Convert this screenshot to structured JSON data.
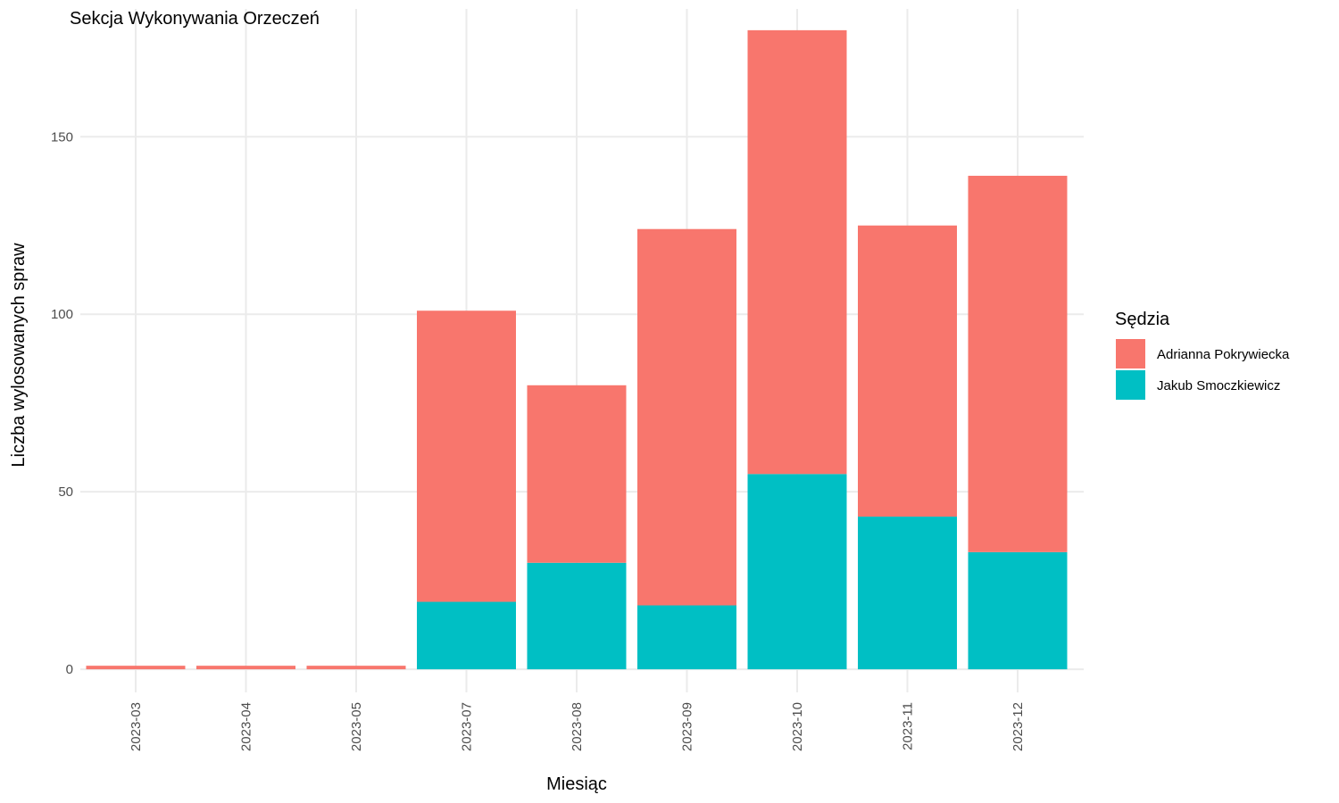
{
  "chart_data": {
    "type": "bar",
    "stacked": true,
    "title": "Sekcja Wykonywania Orzeczeń",
    "xlabel": "Miesiąc",
    "ylabel": "Liczba wylosowanych spraw",
    "categories": [
      "2023-03",
      "2023-04",
      "2023-05",
      "2023-07",
      "2023-08",
      "2023-09",
      "2023-10",
      "2023-11",
      "2023-12"
    ],
    "series": [
      {
        "name": "Jakub Smoczkiewicz",
        "color": "#00BFC4",
        "values": [
          0,
          0,
          0,
          19,
          30,
          18,
          55,
          43,
          33
        ]
      },
      {
        "name": "Adrianna Pokrywiecka",
        "color": "#F8766D",
        "values": [
          1,
          1,
          1,
          82,
          50,
          106,
          125,
          82,
          106
        ]
      }
    ],
    "ylim": [
      -6.5,
      186
    ],
    "yticks": [
      0,
      50,
      100,
      150
    ],
    "grid": true,
    "legend": {
      "title": "Sędzia",
      "position": "right",
      "items": [
        {
          "label": "Adrianna Pokrywiecka",
          "color": "#F8766D"
        },
        {
          "label": "Jakub Smoczkiewicz",
          "color": "#00BFC4"
        }
      ]
    }
  }
}
